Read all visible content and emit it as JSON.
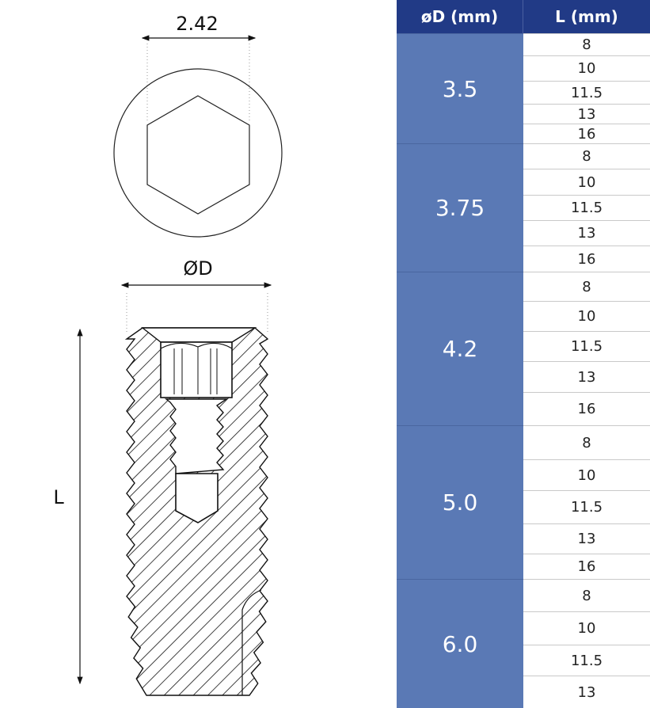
{
  "drawing": {
    "hex_dimension": "2.42",
    "diameter_label": "ØD",
    "length_label": "L"
  },
  "table": {
    "headers": [
      "øD (mm)",
      "L (mm)"
    ],
    "groups": [
      {
        "diameter": "3.5",
        "lengths": [
          "8",
          "10",
          "11.5",
          "13",
          "16"
        ]
      },
      {
        "diameter": "3.75",
        "lengths": [
          "8",
          "10",
          "11.5",
          "13",
          "16"
        ]
      },
      {
        "diameter": "4.2",
        "lengths": [
          "8",
          "10",
          "11.5",
          "13",
          "16"
        ]
      },
      {
        "diameter": "5.0",
        "lengths": [
          "8",
          "10",
          "11.5",
          "13",
          "16"
        ]
      },
      {
        "diameter": "6.0",
        "lengths": [
          "8",
          "10",
          "11.5",
          "13"
        ]
      }
    ],
    "colors": {
      "header": "#213a86",
      "diameter_cell": "#5a79b5"
    }
  }
}
